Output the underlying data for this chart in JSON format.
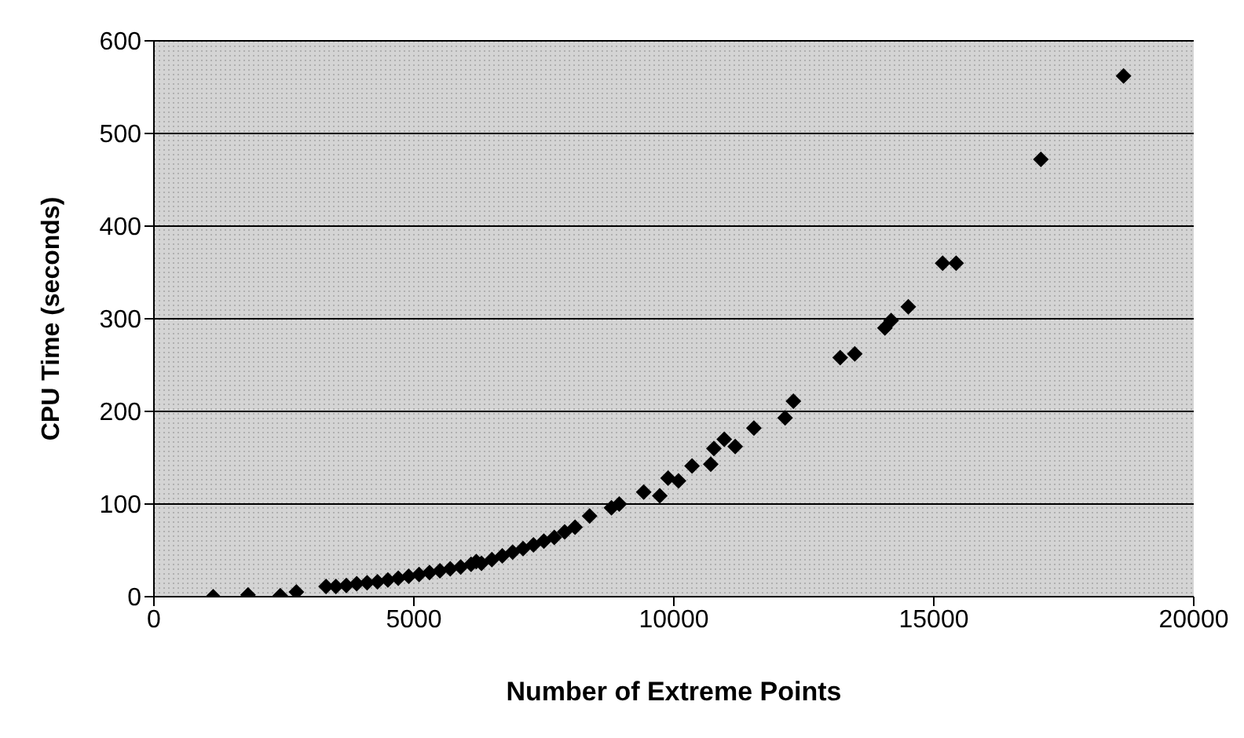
{
  "chart_data": {
    "type": "scatter",
    "xlabel": "Number of Extreme Points",
    "ylabel": "CPU Time (seconds)",
    "marker": "diamond",
    "grid": "y",
    "legend": false,
    "xlim": [
      0,
      20000
    ],
    "xticks": [
      0,
      5000,
      10000,
      15000,
      20000
    ],
    "ylim": [
      0,
      600
    ],
    "yticks": [
      0,
      100,
      200,
      300,
      400,
      500,
      600
    ],
    "series": [
      {
        "color": "#000000",
        "x": [
          1140,
          1810,
          2430,
          2740,
          3310,
          3500,
          3700,
          3900,
          4100,
          4300,
          4500,
          4700,
          4900,
          5100,
          5300,
          5500,
          5700,
          5900,
          6100,
          6200,
          6300,
          6500,
          6700,
          6900,
          7100,
          7300,
          7500,
          7700,
          7900,
          8100,
          8380,
          8800,
          8950,
          9420,
          9730,
          9890,
          10090,
          10350,
          10710,
          10770,
          10970,
          11180,
          11540,
          12140,
          12300,
          13200,
          13480,
          14060,
          14180,
          14510,
          15170,
          15430,
          17060,
          18650
        ],
        "values": [
          0,
          2,
          1,
          5,
          11,
          11,
          12,
          14,
          15,
          16,
          18,
          20,
          22,
          24,
          26,
          28,
          30,
          32,
          35,
          38,
          36,
          40,
          44,
          48,
          52,
          56,
          60,
          64,
          70,
          75,
          87,
          96,
          100,
          113,
          109,
          128,
          125,
          141,
          143,
          160,
          170,
          162,
          182,
          193,
          211,
          258,
          262,
          290,
          298,
          313,
          360,
          360,
          472,
          562
        ]
      }
    ]
  }
}
